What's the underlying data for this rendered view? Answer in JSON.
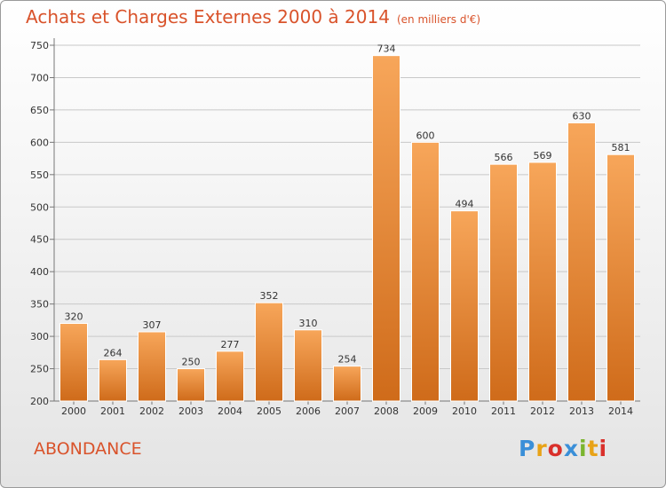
{
  "header": {
    "title": "Achats et Charges Externes 2000 à 2014",
    "unit": "(en milliers d'€)"
  },
  "footer": {
    "commune": "ABONDANCE",
    "logo": "Proxiti"
  },
  "colors": {
    "title": "#d9532b",
    "bar_top": "#f7a65a",
    "bar_bottom": "#cf6b1a"
  },
  "chart_data": {
    "type": "bar",
    "categories": [
      "2000",
      "2001",
      "2002",
      "2003",
      "2004",
      "2005",
      "2006",
      "2007",
      "2008",
      "2009",
      "2010",
      "2011",
      "2012",
      "2013",
      "2014"
    ],
    "values": [
      320,
      264,
      307,
      250,
      277,
      352,
      310,
      254,
      734,
      600,
      494,
      566,
      569,
      630,
      581
    ],
    "ylim": [
      200,
      750
    ],
    "yticks": [
      200,
      250,
      300,
      350,
      400,
      450,
      500,
      550,
      600,
      650,
      700,
      750
    ],
    "grid": true,
    "legend": "none"
  }
}
